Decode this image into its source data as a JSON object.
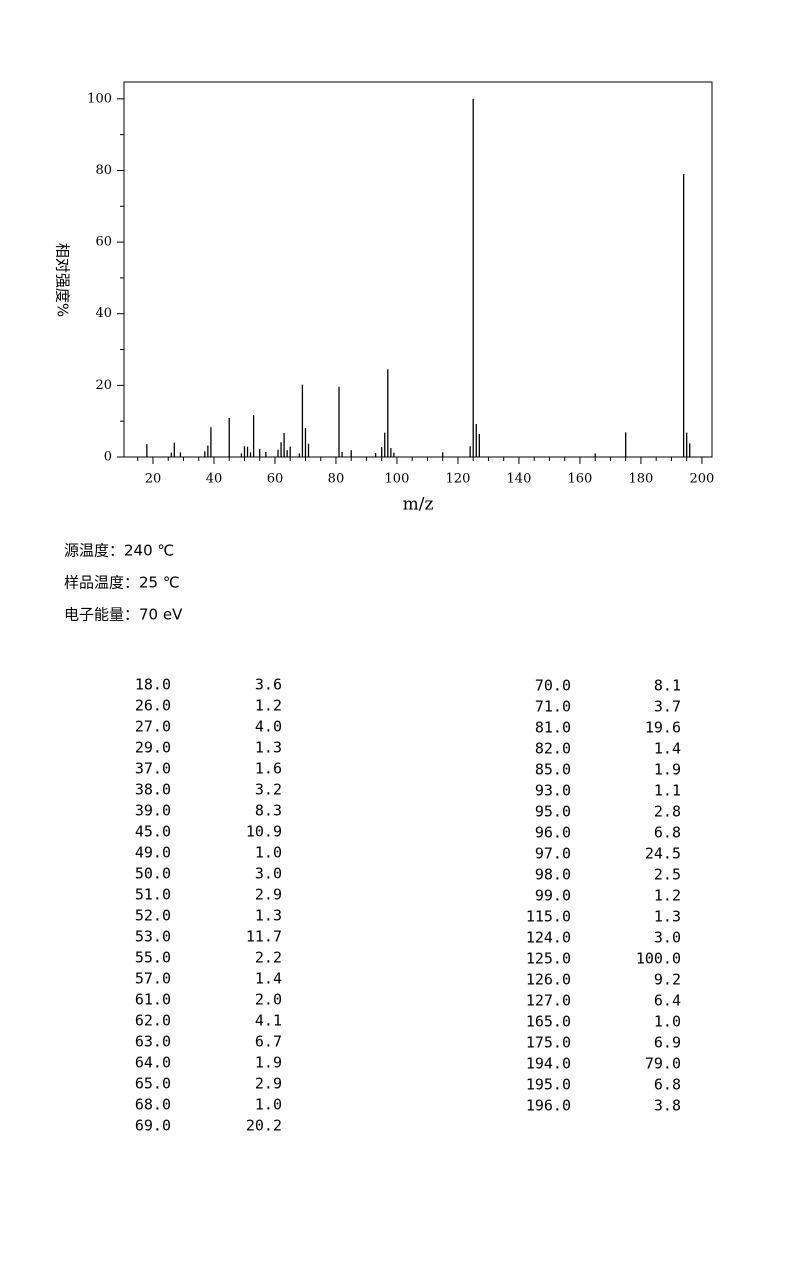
{
  "chart_data": {
    "type": "bar",
    "x_axis_label": "m/z",
    "y_axis_label": "相对强度%",
    "x": [
      18,
      26,
      27,
      29,
      37,
      38,
      39,
      45,
      49,
      50,
      51,
      52,
      53,
      55,
      57,
      61,
      62,
      63,
      64,
      65,
      68,
      69,
      70,
      71,
      81,
      82,
      85,
      93,
      95,
      96,
      97,
      98,
      99,
      115,
      124,
      125,
      126,
      127,
      165,
      175,
      194,
      195,
      196
    ],
    "values": [
      3.6,
      1.2,
      4.0,
      1.3,
      1.6,
      3.2,
      8.3,
      10.9,
      1.0,
      3.0,
      2.9,
      1.3,
      11.7,
      2.2,
      1.4,
      2.0,
      4.1,
      6.7,
      1.9,
      2.9,
      1.0,
      20.2,
      8.1,
      3.7,
      19.6,
      1.4,
      1.9,
      1.1,
      2.8,
      6.8,
      24.5,
      2.5,
      1.2,
      1.3,
      3.0,
      100.0,
      9.2,
      6.4,
      1.0,
      6.9,
      79.0,
      6.8,
      3.8
    ],
    "x_labels": [
      "18.0",
      "26.0",
      "27.0",
      "29.0",
      "37.0",
      "38.0",
      "39.0",
      "45.0",
      "49.0",
      "50.0",
      "51.0",
      "52.0",
      "53.0",
      "55.0",
      "57.0",
      "61.0",
      "62.0",
      "63.0",
      "64.0",
      "65.0",
      "68.0",
      "69.0",
      "70.0",
      "71.0",
      "81.0",
      "82.0",
      "85.0",
      "93.0",
      "95.0",
      "96.0",
      "97.0",
      "98.0",
      "99.0",
      "115.0",
      "124.0",
      "125.0",
      "126.0",
      "127.0",
      "165.0",
      "175.0",
      "194.0",
      "195.0",
      "196.0"
    ],
    "value_labels": [
      "3.6",
      "1.2",
      "4.0",
      "1.3",
      "1.6",
      "3.2",
      "8.3",
      "10.9",
      "1.0",
      "3.0",
      "2.9",
      "1.3",
      "11.7",
      "2.2",
      "1.4",
      "2.0",
      "4.1",
      "6.7",
      "1.9",
      "2.9",
      "1.0",
      "20.2",
      "8.1",
      "3.7",
      "19.6",
      "1.4",
      "1.9",
      "1.1",
      "2.8",
      "6.8",
      "24.5",
      "2.5",
      "1.2",
      "1.3",
      "3.0",
      "100.0",
      "9.2",
      "6.4",
      "1.0",
      "6.9",
      "79.0",
      "6.8",
      "3.8"
    ],
    "color": "#000000",
    "xlim": [
      10.5,
      203.3
    ],
    "ylim": [
      0,
      104.7
    ],
    "xticks": [
      20,
      40,
      60,
      80,
      100,
      120,
      140,
      160,
      180,
      200
    ],
    "yticks": [
      0,
      20,
      40,
      60,
      80,
      100
    ],
    "xminorticks": [
      15,
      25,
      30,
      35,
      45,
      50,
      55,
      65,
      70,
      75,
      85,
      90,
      95,
      105,
      110,
      115,
      125,
      130,
      135,
      145,
      150,
      155,
      165,
      170,
      175,
      185,
      190,
      195
    ],
    "yminorticks": [
      10,
      30,
      50,
      70,
      90
    ],
    "grid": false
  },
  "conditions": [
    "源温度：240 ℃",
    "样品温度：25 ℃",
    "电子能量：70 eV"
  ]
}
